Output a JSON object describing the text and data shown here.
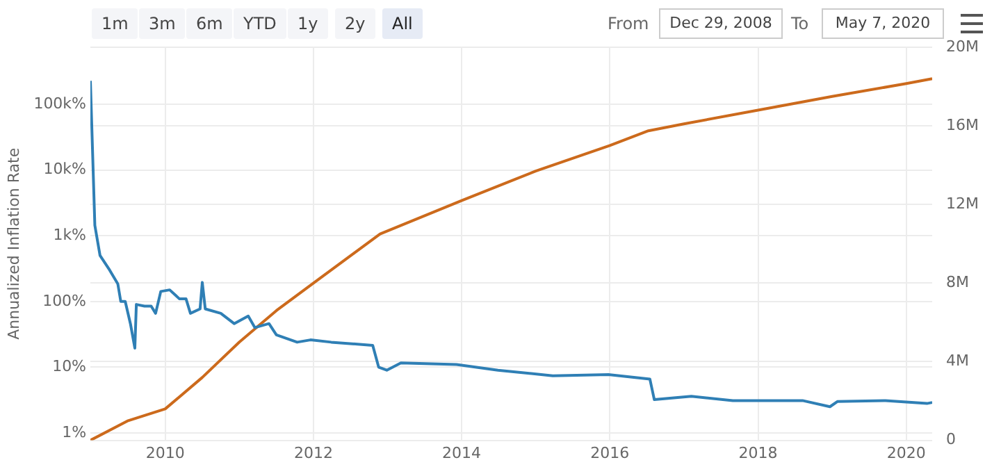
{
  "chart_data": {
    "type": "line",
    "ylabel": "Annualized Inflation Rate",
    "annotations": [
      "1m",
      "3m",
      "6m",
      "YTD",
      "1y",
      "2y",
      "All",
      "From",
      "Dec 29, 2008",
      "To",
      "May 7, 2020"
    ],
    "xlim": [
      2008.99,
      2020.35
    ],
    "xticks": [
      2010,
      2012,
      2014,
      2016,
      2018,
      2020
    ],
    "log": "y",
    "ylim": [
      0.77,
      740000
    ],
    "yticks": [
      {
        "value": 1,
        "label": "1%"
      },
      {
        "value": 10,
        "label": "10%"
      },
      {
        "value": 100,
        "label": "100%"
      },
      {
        "value": 1000,
        "label": "1k%"
      },
      {
        "value": 10000,
        "label": "10k%"
      },
      {
        "value": 100000,
        "label": "100k%"
      }
    ],
    "y2lim": [
      0,
      20
    ],
    "y2ticks": [
      {
        "value": 0,
        "label": "0"
      },
      {
        "value": 4,
        "label": "4M"
      },
      {
        "value": 8,
        "label": "8M"
      },
      {
        "value": 12,
        "label": "12M"
      },
      {
        "value": 16,
        "label": "16M"
      },
      {
        "value": 20,
        "label": "20M"
      }
    ],
    "grid": true,
    "legend": false,
    "marker": "none",
    "series": [
      {
        "color": "#2f7fb5",
        "x": [
          2008.99,
          2009.05,
          2009.12,
          2009.25,
          2009.36,
          2009.4,
          2009.46,
          2009.53,
          2009.59,
          2009.61,
          2009.72,
          2009.81,
          2009.87,
          2009.94,
          2010.06,
          2010.19,
          2010.28,
          2010.34,
          2010.47,
          2010.5,
          2010.54,
          2010.75,
          2010.93,
          2011.12,
          2011.21,
          2011.4,
          2011.5,
          2011.78,
          2011.96,
          2012.24,
          2012.8,
          2012.88,
          2012.99,
          2013.18,
          2013.93,
          2014.49,
          2015.23,
          2015.98,
          2016.54,
          2016.6,
          2017.1,
          2017.66,
          2018.6,
          2018.97,
          2019.07,
          2019.72,
          2020.28,
          2020.35
        ],
        "values": [
          228000,
          1440,
          500,
          300,
          185,
          100,
          100,
          46,
          19.5,
          90,
          85,
          85,
          66,
          142,
          150,
          110,
          110,
          66,
          77,
          195,
          77,
          66,
          46,
          60,
          40,
          46,
          31,
          24,
          26,
          24,
          21.5,
          10,
          9,
          11.6,
          11,
          9,
          7.4,
          7.7,
          6.6,
          3.2,
          3.6,
          3.1,
          3.1,
          2.5,
          3.0,
          3.1,
          2.8,
          2.9
        ]
      },
      {
        "color": "#cc6a1c",
        "axis": "y2",
        "x": [
          2008.99,
          2009.5,
          2010,
          2010.5,
          2011,
          2011.5,
          2012,
          2012.9,
          2014,
          2015,
          2016,
          2016.52,
          2017,
          2018,
          2019,
          2020,
          2020.35
        ],
        "values": [
          0,
          1.0,
          1.6,
          3.2,
          5.0,
          6.6,
          8.0,
          10.5,
          12.2,
          13.7,
          15.0,
          15.75,
          16.1,
          16.8,
          17.5,
          18.15,
          18.4
        ]
      }
    ]
  }
}
